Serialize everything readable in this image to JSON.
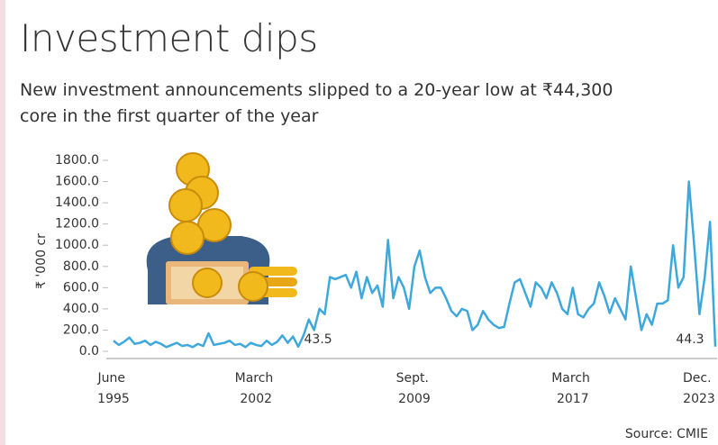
{
  "chart_data": {
    "type": "line",
    "title": "Investment dips",
    "subtitle": "New investment announcements slipped to a 20-year low at ₹44,300 core in the first quarter of the year",
    "y_label": "₹ '000 cr",
    "source": "Source: CMIE",
    "color": "#3ea8dc",
    "categories": [
      "June 1995",
      null,
      null,
      null,
      null,
      null,
      null,
      null,
      null,
      null,
      null,
      null,
      null,
      null,
      null,
      null,
      null,
      null,
      null,
      null,
      null,
      null,
      null,
      null,
      null,
      null,
      null,
      "March 2002",
      null,
      null,
      null,
      null,
      null,
      null,
      null,
      null,
      null,
      null,
      null,
      null,
      null,
      null,
      null,
      null,
      null,
      null,
      null,
      null,
      null,
      null,
      null,
      null,
      null,
      null,
      null,
      null,
      null,
      "Sept. 2009",
      null,
      null,
      null,
      null,
      null,
      null,
      null,
      null,
      null,
      null,
      null,
      null,
      null,
      null,
      null,
      null,
      null,
      null,
      null,
      null,
      null,
      null,
      null,
      null,
      null,
      null,
      null,
      null,
      null,
      "March 2017",
      null,
      null,
      null,
      null,
      null,
      null,
      null,
      null,
      null,
      null,
      null,
      null,
      null,
      null,
      null,
      null,
      null,
      null,
      null,
      null,
      null,
      null,
      null,
      null,
      null,
      null,
      "Dec. 2023"
    ],
    "values": [
      100,
      60,
      90,
      130,
      70,
      80,
      100,
      60,
      90,
      70,
      40,
      60,
      80,
      50,
      60,
      40,
      70,
      50,
      170,
      60,
      70,
      80,
      100,
      60,
      70,
      40,
      80,
      60,
      50,
      100,
      60,
      90,
      150,
      80,
      140,
      43.5,
      150,
      300,
      200,
      400,
      350,
      700,
      680,
      700,
      720,
      600,
      750,
      500,
      700,
      550,
      620,
      420,
      1050,
      500,
      700,
      600,
      400,
      800,
      950,
      700,
      550,
      600,
      600,
      500,
      380,
      330,
      400,
      380,
      200,
      250,
      380,
      300,
      250,
      220,
      230,
      450,
      650,
      680,
      550,
      420,
      650,
      600,
      500,
      650,
      550,
      400,
      350,
      600,
      350,
      320,
      400,
      450,
      650,
      520,
      360,
      500,
      400,
      300,
      800,
      500,
      200,
      350,
      250,
      450,
      450,
      480,
      1000,
      600,
      700,
      1600,
      1000,
      350,
      700,
      1220,
      44.3
    ],
    "value_labels": [
      null,
      null,
      null,
      null,
      null,
      null,
      null,
      null,
      null,
      null,
      null,
      null,
      null,
      null,
      null,
      null,
      null,
      null,
      null,
      null,
      null,
      null,
      null,
      null,
      null,
      null,
      null,
      null,
      null,
      null,
      null,
      null,
      null,
      null,
      null,
      "43.5",
      null,
      null,
      null,
      null,
      null,
      null,
      null,
      null,
      null,
      null,
      null,
      null,
      null,
      null,
      null,
      null,
      null,
      null,
      null,
      null,
      null,
      null,
      null,
      null,
      null,
      null,
      null,
      null,
      null,
      null,
      null,
      null,
      null,
      null,
      null,
      null,
      null,
      null,
      null,
      null,
      null,
      null,
      null,
      null,
      null,
      null,
      null,
      null,
      null,
      null,
      null,
      null,
      null,
      null,
      null,
      null,
      null,
      null,
      null,
      null,
      null,
      null,
      null,
      null,
      null,
      null,
      null,
      null,
      null,
      null,
      null,
      null,
      null,
      null,
      null,
      null,
      null,
      null,
      "44.3"
    ],
    "ylim": [
      0,
      1800
    ],
    "yticks": [
      {
        "value": 0,
        "label": "0.0"
      },
      {
        "value": 200,
        "label": "200.0"
      },
      {
        "value": 400,
        "label": "400.0"
      },
      {
        "value": 600,
        "label": "600.0"
      },
      {
        "value": 800,
        "label": "800.0"
      },
      {
        "value": 1000,
        "label": "1000.0"
      },
      {
        "value": 1200,
        "label": "1200.0"
      },
      {
        "value": 1400,
        "label": "1400.0"
      },
      {
        "value": 1600,
        "label": "1600.0"
      },
      {
        "value": 1800,
        "label": "1800.0"
      }
    ]
  }
}
